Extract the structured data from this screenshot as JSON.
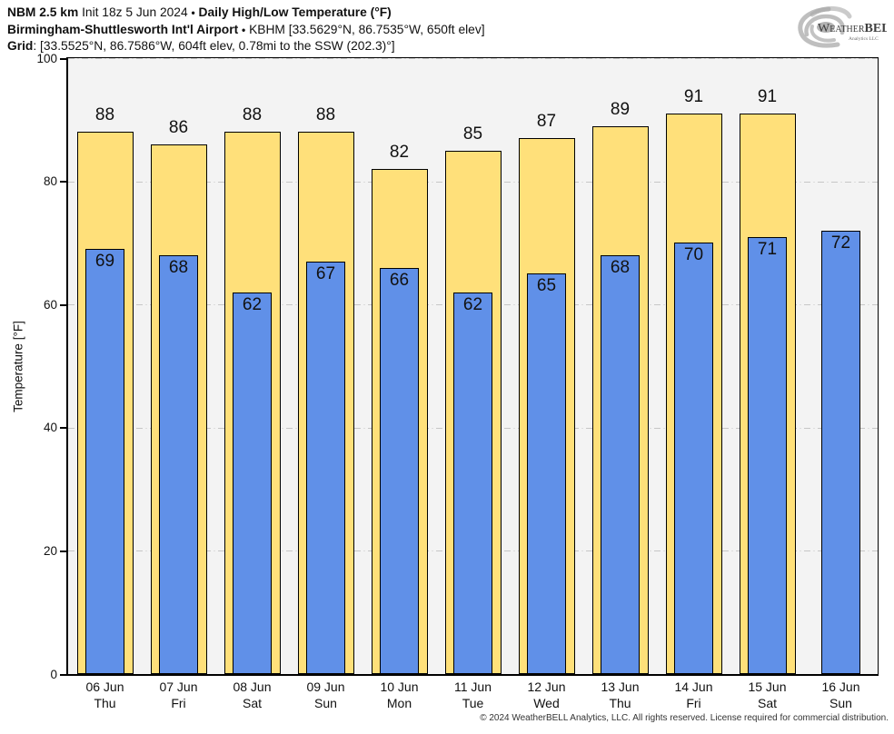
{
  "header": {
    "model": "NBM 2.5 km",
    "init": "Init 18z 5 Jun 2024",
    "bullet": "•",
    "product": "Daily High/Low Temperature (°F)",
    "station_name": "Birmingham-Shuttlesworth Int'l Airport",
    "station_info": "KBHM [33.5629°N, 86.7535°W, 650ft elev]",
    "grid_label": "Grid",
    "grid_info": ": [33.5525°N, 86.7586°W, 604ft elev, 0.78mi to the SSW (202.3)°]"
  },
  "logo": {
    "weather": "Weather",
    "bell": "BELL",
    "tagline": "Analytics LLC"
  },
  "chart_data": {
    "type": "bar",
    "title": "Daily High/Low Temperature (°F)",
    "ylabel": "Temperature [°F]",
    "xlabel": "",
    "ylim": [
      0,
      100
    ],
    "yticks": [
      0,
      20,
      40,
      60,
      80,
      100
    ],
    "grid": "horizontal dash-dot lines at yticks",
    "legend": "none",
    "categories": [
      "06 Jun",
      "07 Jun",
      "08 Jun",
      "09 Jun",
      "10 Jun",
      "11 Jun",
      "12 Jun",
      "13 Jun",
      "14 Jun",
      "15 Jun",
      "16 Jun"
    ],
    "day_labels": [
      "Thu",
      "Fri",
      "Sat",
      "Sun",
      "Mon",
      "Tue",
      "Wed",
      "Thu",
      "Fri",
      "Sat",
      "Sun"
    ],
    "series": [
      {
        "name": "Daily High",
        "color": "#FFE07A",
        "values": [
          88,
          86,
          88,
          88,
          82,
          85,
          87,
          89,
          91,
          91,
          null
        ]
      },
      {
        "name": "Daily Low",
        "color": "#6090E8",
        "values": [
          69,
          68,
          62,
          67,
          66,
          62,
          65,
          68,
          70,
          71,
          72
        ]
      }
    ]
  },
  "footer": {
    "copyright": "© 2024 WeatherBELL Analytics, LLC. All rights reserved. License required for commercial distribution."
  },
  "colors": {
    "high_bar": "#FFE07A",
    "low_bar": "#6090E8",
    "plot_bg": "#F3F3F3",
    "grid_line": "#C6C6C6",
    "bar_border": "#000000"
  }
}
